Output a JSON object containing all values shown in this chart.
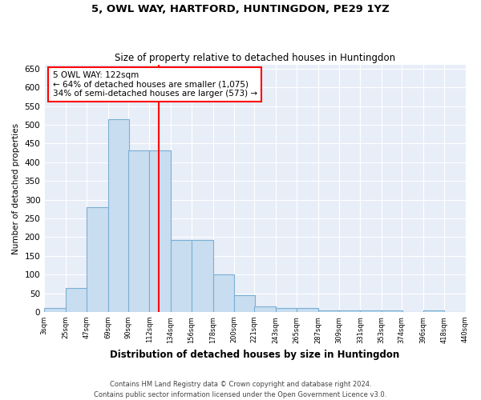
{
  "title": "5, OWL WAY, HARTFORD, HUNTINGDON, PE29 1YZ",
  "subtitle": "Size of property relative to detached houses in Huntingdon",
  "xlabel": "Distribution of detached houses by size in Huntingdon",
  "ylabel": "Number of detached properties",
  "bar_color": "#c9ddf0",
  "bar_edge_color": "#7aafd4",
  "background_color": "#e8eef8",
  "grid_color": "#ffffff",
  "vline_x": 122,
  "vline_color": "red",
  "annotation_line1": "5 OWL WAY: 122sqm",
  "annotation_line2": "← 64% of detached houses are smaller (1,075)",
  "annotation_line3": "34% of semi-detached houses are larger (573) →",
  "annotation_box_color": "white",
  "annotation_box_edge": "red",
  "bins_left": [
    3,
    25,
    47,
    69,
    90,
    112,
    134,
    156,
    178,
    200,
    221,
    243,
    265,
    287,
    309,
    331,
    353,
    374,
    396,
    418
  ],
  "bin_width": 22,
  "bar_heights": [
    10,
    65,
    280,
    515,
    432,
    432,
    192,
    192,
    100,
    45,
    15,
    10,
    10,
    5,
    5,
    4,
    4,
    0,
    4,
    0
  ],
  "xtick_labels": [
    "3sqm",
    "25sqm",
    "47sqm",
    "69sqm",
    "90sqm",
    "112sqm",
    "134sqm",
    "156sqm",
    "178sqm",
    "200sqm",
    "221sqm",
    "243sqm",
    "265sqm",
    "287sqm",
    "309sqm",
    "331sqm",
    "353sqm",
    "374sqm",
    "396sqm",
    "418sqm",
    "440sqm"
  ],
  "ylim": [
    0,
    660
  ],
  "yticks": [
    0,
    50,
    100,
    150,
    200,
    250,
    300,
    350,
    400,
    450,
    500,
    550,
    600,
    650
  ],
  "footer_text": "Contains HM Land Registry data © Crown copyright and database right 2024.\nContains public sector information licensed under the Open Government Licence v3.0.",
  "figsize": [
    6.0,
    5.0
  ],
  "dpi": 100
}
